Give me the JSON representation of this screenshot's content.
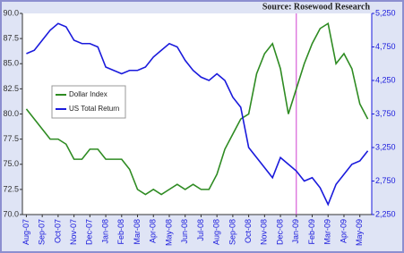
{
  "chart_data": {
    "type": "line",
    "source": "Source: Rosewood Research",
    "categories": [
      "Aug-07",
      null,
      "Sep-07",
      null,
      "Oct-07",
      null,
      "Nov-07",
      null,
      "Dec-07",
      null,
      "Jan-08",
      null,
      "Feb-08",
      null,
      "Mar-08",
      null,
      "Apr-08",
      null,
      "May-08",
      null,
      "Jun-08",
      null,
      "Jul-08",
      null,
      "Aug-08",
      null,
      "Sep-08",
      null,
      "Oct-08",
      null,
      "Nov-08",
      null,
      "Dec-08",
      null,
      "Jan-09",
      null,
      "Feb-09",
      null,
      "Mar-09",
      null,
      "Apr-09",
      null,
      "May-09",
      null
    ],
    "series": [
      {
        "name": "Dollar Index",
        "color": "#2e8b22",
        "values": [
          80.5,
          79.5,
          78.5,
          77.5,
          77.5,
          77.0,
          75.5,
          75.5,
          76.5,
          76.5,
          75.5,
          75.5,
          75.5,
          74.5,
          72.5,
          72.0,
          72.5,
          72.0,
          72.5,
          73.0,
          72.5,
          73.0,
          72.5,
          72.5,
          74.0,
          76.5,
          78.0,
          79.5,
          80.0,
          84.0,
          86.0,
          87.0,
          84.5,
          80.0,
          82.5,
          85.0,
          87.0,
          88.5,
          89.0,
          85.0,
          86.0,
          84.5,
          81.0,
          79.5
        ]
      },
      {
        "name": "US Total Return",
        "color": "#1a1adc",
        "axis": "y2",
        "values": [
          4650,
          4700,
          4850,
          5000,
          5100,
          5050,
          4850,
          4800,
          4800,
          4750,
          4450,
          4400,
          4350,
          4400,
          4400,
          4450,
          4600,
          4700,
          4800,
          4750,
          4550,
          4400,
          4300,
          4250,
          4350,
          4250,
          4000,
          3850,
          3250,
          3100,
          2950,
          2800,
          3100,
          3000,
          2900,
          2750,
          2800,
          2650,
          2400,
          2700,
          2850,
          3000,
          3050,
          3200
        ]
      }
    ],
    "ylim": [
      70,
      90
    ],
    "yticks": [
      {
        "value": 70,
        "label": "70.0"
      },
      72.5,
      {
        "value": 75,
        "label": "75.0"
      },
      77.5,
      {
        "value": 80,
        "label": "80.0"
      },
      82.5,
      {
        "value": 85,
        "label": "85.0"
      },
      87.5,
      {
        "value": 90,
        "label": "90.0"
      }
    ],
    "y2lim": [
      2250,
      5250
    ],
    "y2ticks": [
      {
        "value": 2250,
        "label": "2,250"
      },
      {
        "value": 2750,
        "label": "2,750"
      },
      {
        "value": 3250,
        "label": "3,250"
      },
      {
        "value": 3750,
        "label": "3,750"
      },
      {
        "value": 4250,
        "label": "4,250"
      },
      {
        "value": 4750,
        "label": "4,750"
      },
      {
        "value": 5250,
        "label": "5,250"
      }
    ],
    "legend": "left"
  }
}
